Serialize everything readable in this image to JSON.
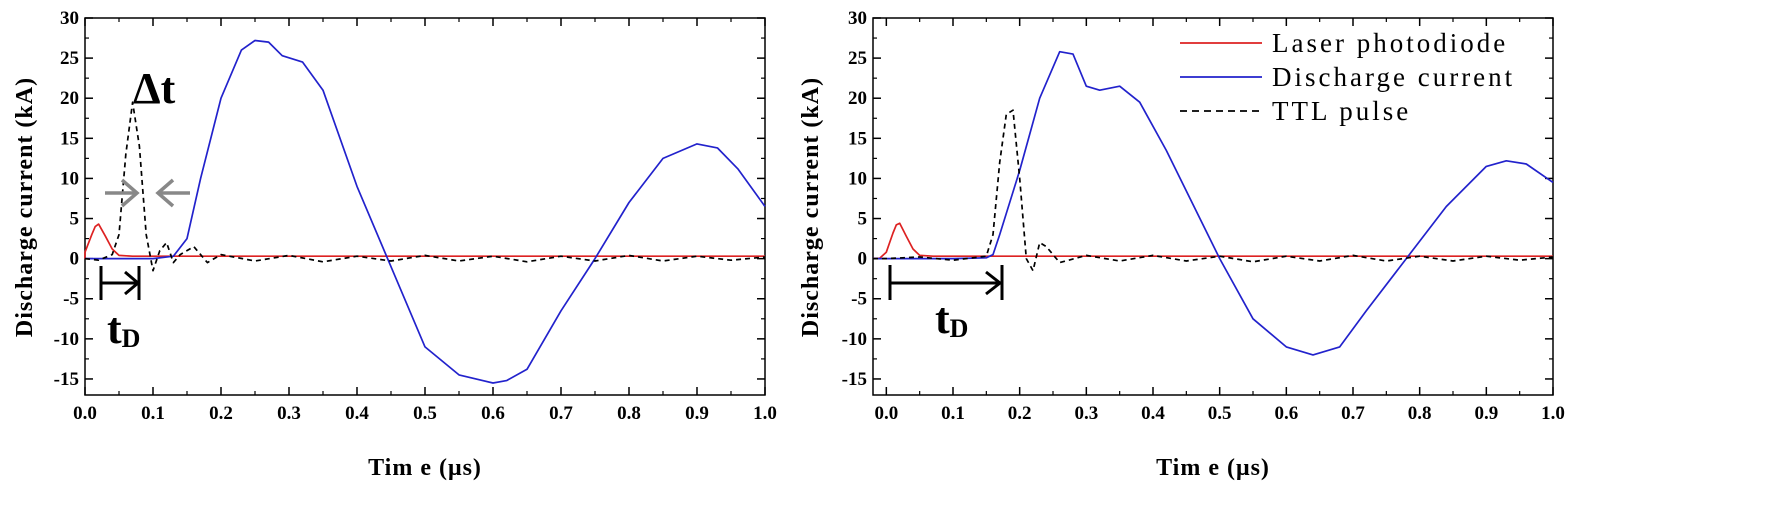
{
  "chart_data": [
    {
      "type": "line",
      "xlabel": "Tim e (μs)",
      "ylabel": "Discharge current (kA)",
      "xlim": [
        0.0,
        1.0
      ],
      "ylim": [
        -17,
        30
      ],
      "xticks": [
        "0.0",
        "0.1",
        "0.2",
        "0.3",
        "0.4",
        "0.5",
        "0.6",
        "0.7",
        "0.8",
        "0.9",
        "1.0"
      ],
      "yticks": [
        "-15",
        "-10",
        "-5",
        "0",
        "5",
        "10",
        "15",
        "20",
        "25",
        "30"
      ],
      "annotations": {
        "delta_label": "Δt",
        "td_main": "t",
        "td_sub": "D"
      },
      "series": [
        {
          "color": "#dd2222",
          "dash": "solid",
          "x": [
            -0.02,
            -0.01,
            0.0,
            0.01,
            0.015,
            0.02,
            0.03,
            0.04,
            0.05,
            0.07,
            0.12,
            0.3,
            0.5,
            0.7,
            0.9,
            1.0
          ],
          "y": [
            0,
            0.05,
            0.8,
            3.0,
            4.0,
            4.3,
            2.8,
            1.2,
            0.4,
            0.3,
            0.3,
            0.3,
            0.3,
            0.3,
            0.3,
            0.3
          ]
        },
        {
          "color": "#2222cc",
          "dash": "solid",
          "x": [
            -0.02,
            0.0,
            0.05,
            0.1,
            0.13,
            0.15,
            0.17,
            0.2,
            0.23,
            0.25,
            0.27,
            0.29,
            0.32,
            0.35,
            0.4,
            0.45,
            0.5,
            0.55,
            0.6,
            0.62,
            0.65,
            0.7,
            0.75,
            0.8,
            0.85,
            0.9,
            0.93,
            0.96,
            1.0
          ],
          "y": [
            0,
            0,
            0,
            0,
            0.3,
            2.5,
            10,
            20,
            26,
            27.2,
            27,
            25.3,
            24.5,
            21,
            9,
            -1,
            -11,
            -14.5,
            -15.5,
            -15.2,
            -13.8,
            -6.5,
            0,
            7,
            12.5,
            14.3,
            13.8,
            11.2,
            6.5
          ]
        },
        {
          "color": "#000000",
          "dash": "dashed",
          "x": [
            -0.02,
            0.0,
            0.02,
            0.04,
            0.05,
            0.06,
            0.07,
            0.08,
            0.09,
            0.1,
            0.11,
            0.12,
            0.13,
            0.14,
            0.16,
            0.18,
            0.2,
            0.25,
            0.3,
            0.35,
            0.4,
            0.45,
            0.5,
            0.55,
            0.6,
            0.65,
            0.7,
            0.75,
            0.8,
            0.85,
            0.9,
            0.95,
            1.0
          ],
          "y": [
            0,
            0,
            -0.2,
            0.5,
            3,
            13,
            19.5,
            14,
            3,
            -1.5,
            1,
            2,
            -0.5,
            0.5,
            1.5,
            -0.5,
            0.5,
            -0.3,
            0.4,
            -0.4,
            0.3,
            -0.3,
            0.4,
            -0.3,
            0.3,
            -0.4,
            0.3,
            -0.3,
            0.4,
            -0.3,
            0.3,
            -0.2,
            0.2
          ]
        }
      ]
    },
    {
      "type": "line",
      "xlabel": "Tim e (μs)",
      "ylabel": "Discharge current (kA)",
      "xlim": [
        -0.02,
        1.0
      ],
      "ylim": [
        -17,
        30
      ],
      "xticks": [
        "0.0",
        "0.1",
        "0.2",
        "0.3",
        "0.4",
        "0.5",
        "0.6",
        "0.7",
        "0.8",
        "0.9",
        "1.0"
      ],
      "yticks": [
        "-15",
        "-10",
        "-5",
        "0",
        "5",
        "10",
        "15",
        "20",
        "25",
        "30"
      ],
      "annotations": {
        "td_main": "t",
        "td_sub": "D"
      },
      "legend": {
        "position": "top-right",
        "entries": [
          "Laser photodiode",
          "Discharge current",
          "TTL pulse"
        ]
      },
      "series": [
        {
          "name": "Laser photodiode",
          "color": "#dd2222",
          "dash": "solid",
          "x": [
            -0.02,
            -0.01,
            0.0,
            0.01,
            0.015,
            0.02,
            0.03,
            0.04,
            0.05,
            0.07,
            0.12,
            0.3,
            0.5,
            0.7,
            0.9,
            1.0
          ],
          "y": [
            0,
            0.05,
            0.8,
            3.2,
            4.2,
            4.4,
            2.8,
            1.2,
            0.4,
            0.3,
            0.3,
            0.3,
            0.3,
            0.3,
            0.3,
            0.3
          ]
        },
        {
          "name": "Discharge current",
          "color": "#2222cc",
          "dash": "solid",
          "x": [
            -0.02,
            0.0,
            0.1,
            0.15,
            0.16,
            0.17,
            0.2,
            0.23,
            0.26,
            0.28,
            0.3,
            0.32,
            0.35,
            0.38,
            0.42,
            0.5,
            0.55,
            0.6,
            0.64,
            0.68,
            0.72,
            0.78,
            0.84,
            0.9,
            0.93,
            0.96,
            1.0
          ],
          "y": [
            0,
            0,
            0,
            0.1,
            0.5,
            3,
            11,
            20,
            25.8,
            25.5,
            21.5,
            21,
            21.5,
            19.5,
            13.5,
            0,
            -7.5,
            -11,
            -12,
            -11,
            -6.5,
            0,
            6.5,
            11.5,
            12.2,
            11.8,
            9.5
          ]
        },
        {
          "name": "TTL pulse",
          "color": "#000000",
          "dash": "dashed",
          "x": [
            -0.02,
            0.0,
            0.05,
            0.1,
            0.15,
            0.16,
            0.17,
            0.18,
            0.19,
            0.2,
            0.21,
            0.22,
            0.23,
            0.24,
            0.26,
            0.3,
            0.35,
            0.4,
            0.45,
            0.5,
            0.55,
            0.6,
            0.65,
            0.7,
            0.75,
            0.8,
            0.85,
            0.9,
            0.95,
            1.0
          ],
          "y": [
            0,
            0,
            0.2,
            -0.2,
            0.3,
            3,
            12,
            18,
            18.5,
            10,
            0,
            -1.5,
            2,
            1.5,
            -0.5,
            0.4,
            -0.3,
            0.4,
            -0.3,
            0.3,
            -0.4,
            0.3,
            -0.3,
            0.4,
            -0.3,
            0.3,
            -0.3,
            0.3,
            -0.2,
            0.2
          ]
        }
      ]
    }
  ]
}
